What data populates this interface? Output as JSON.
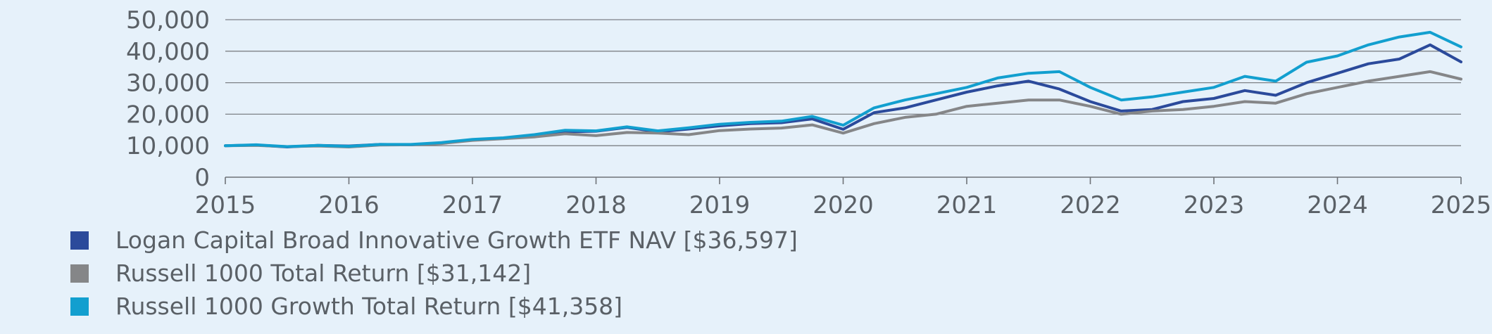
{
  "chart_data": {
    "type": "line",
    "x_ticks": [
      "2015",
      "2016",
      "2017",
      "2018",
      "2019",
      "2020",
      "2021",
      "2022",
      "2023",
      "2024",
      "2025"
    ],
    "y_ticks": [
      "0",
      "10,000",
      "20,000",
      "30,000",
      "40,000",
      "50,000"
    ],
    "ylim": [
      0,
      50000
    ],
    "xlim": [
      2015,
      2025
    ],
    "grid": true,
    "legend_position": "bottom",
    "series": [
      {
        "name": "Logan Capital Broad Innovative Growth ETF NAV [$36,597]",
        "color": "#2b4a9b",
        "x": [
          2015,
          2015.25,
          2015.5,
          2015.75,
          2016,
          2016.25,
          2016.5,
          2016.75,
          2017,
          2017.25,
          2017.5,
          2017.75,
          2018,
          2018.25,
          2018.5,
          2018.75,
          2019,
          2019.25,
          2019.5,
          2019.75,
          2020,
          2020.25,
          2020.5,
          2020.75,
          2021,
          2021.25,
          2021.5,
          2021.75,
          2022,
          2022.25,
          2022.5,
          2022.75,
          2023,
          2023.25,
          2023.5,
          2023.75,
          2024,
          2024.25,
          2024.5,
          2024.75,
          2025
        ],
        "y": [
          10000,
          10200,
          9600,
          10100,
          9900,
          10400,
          10300,
          10900,
          11800,
          12300,
          13200,
          14400,
          14600,
          15800,
          14400,
          15300,
          16300,
          17000,
          17300,
          18500,
          15200,
          20500,
          22000,
          24500,
          27000,
          29000,
          30500,
          28000,
          24000,
          21000,
          21500,
          24000,
          25000,
          27500,
          26000,
          30000,
          33000,
          36000,
          37500,
          42000,
          36597
        ]
      },
      {
        "name": "Russell 1000 Total Return [$31,142]",
        "color": "#858688",
        "x": [
          2015,
          2015.25,
          2015.5,
          2015.75,
          2016,
          2016.25,
          2016.5,
          2016.75,
          2017,
          2017.25,
          2017.5,
          2017.75,
          2018,
          2018.25,
          2018.5,
          2018.75,
          2019,
          2019.25,
          2019.5,
          2019.75,
          2020,
          2020.25,
          2020.5,
          2020.75,
          2021,
          2021.25,
          2021.5,
          2021.75,
          2022,
          2022.25,
          2022.5,
          2022.75,
          2023,
          2023.25,
          2023.5,
          2023.75,
          2024,
          2024.25,
          2024.5,
          2024.75,
          2025
        ],
        "y": [
          10000,
          10100,
          9700,
          9900,
          9600,
          10200,
          10300,
          10700,
          11700,
          12200,
          12800,
          13800,
          13200,
          14200,
          14000,
          13500,
          14800,
          15300,
          15600,
          16600,
          14000,
          17000,
          19000,
          20000,
          22500,
          23500,
          24500,
          24500,
          22500,
          20000,
          21000,
          21500,
          22500,
          24000,
          23500,
          26500,
          28500,
          30500,
          32000,
          33500,
          31142
        ]
      },
      {
        "name": "Russell 1000 Growth Total Return [$41,358]",
        "color": "#129fcf",
        "x": [
          2015,
          2015.25,
          2015.5,
          2015.75,
          2016,
          2016.25,
          2016.5,
          2016.75,
          2017,
          2017.25,
          2017.5,
          2017.75,
          2018,
          2018.25,
          2018.5,
          2018.75,
          2019,
          2019.25,
          2019.5,
          2019.75,
          2020,
          2020.25,
          2020.5,
          2020.75,
          2021,
          2021.25,
          2021.5,
          2021.75,
          2022,
          2022.25,
          2022.5,
          2022.75,
          2023,
          2023.25,
          2023.5,
          2023.75,
          2024,
          2024.25,
          2024.5,
          2024.75,
          2025
        ],
        "y": [
          10000,
          10300,
          9700,
          10100,
          9800,
          10400,
          10400,
          11000,
          12000,
          12500,
          13500,
          14900,
          14700,
          16000,
          14700,
          15700,
          16800,
          17400,
          17800,
          19300,
          16500,
          22000,
          24500,
          26500,
          28500,
          31500,
          33000,
          33500,
          28500,
          24500,
          25500,
          27000,
          28500,
          32000,
          30500,
          36500,
          38500,
          42000,
          44500,
          46000,
          41358
        ]
      }
    ]
  }
}
